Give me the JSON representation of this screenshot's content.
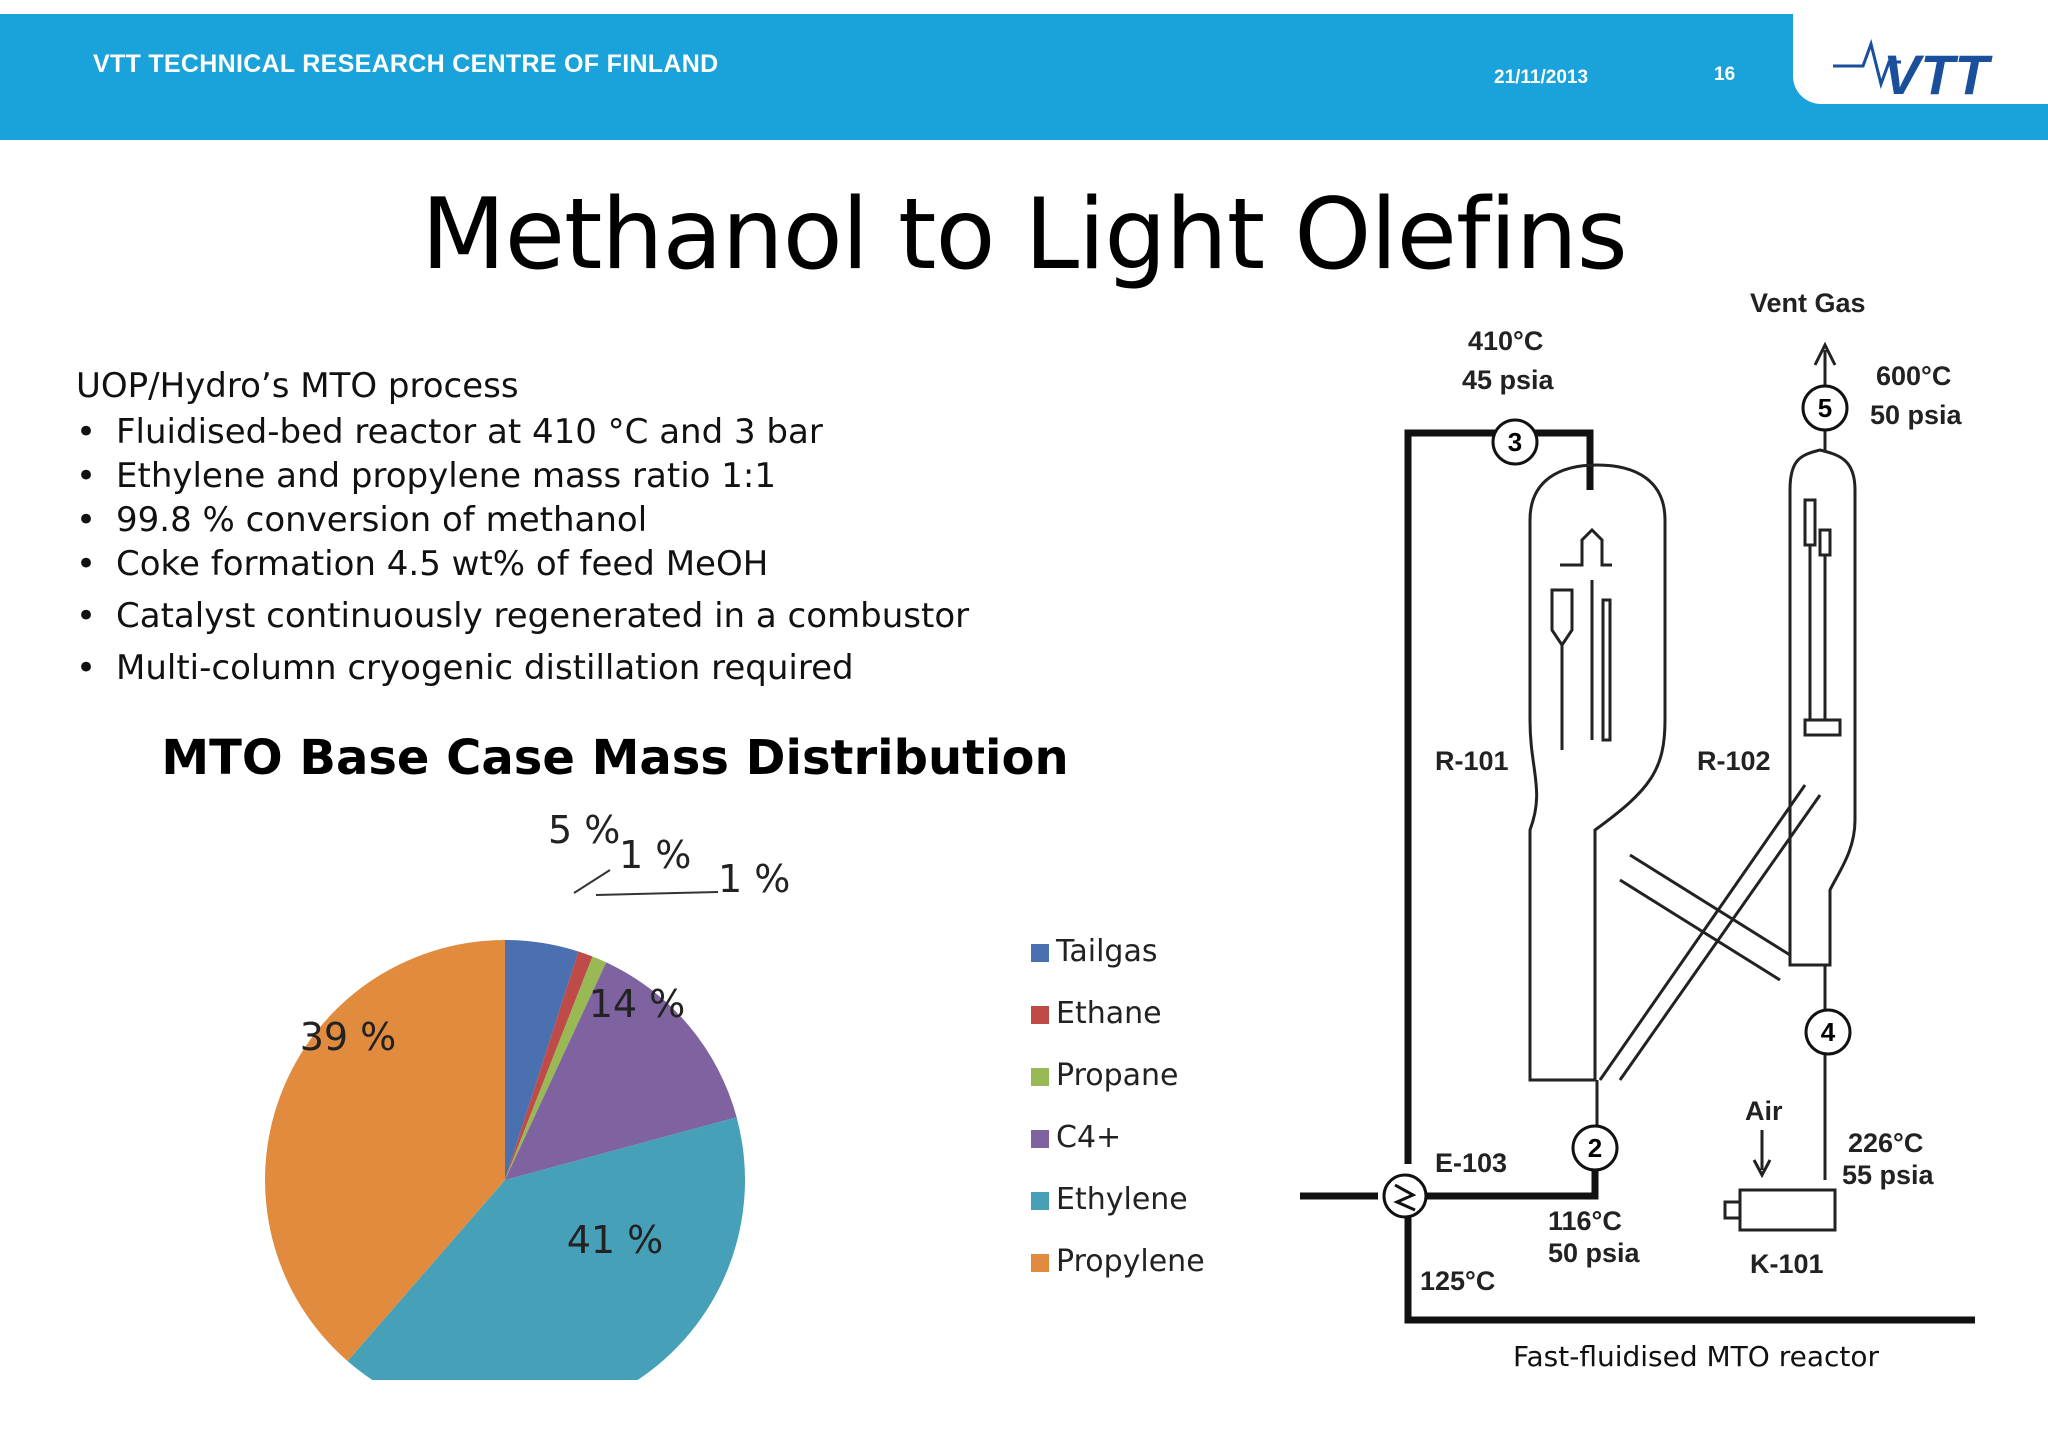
{
  "header": {
    "org_name": "VTT TECHNICAL RESEARCH CENTRE OF FINLAND",
    "date": "21/11/2013",
    "page_number": "16",
    "logo_text": "VTT",
    "colors": {
      "bar": "#1aa2da",
      "logo": "#1a4f9c"
    }
  },
  "slide": {
    "title": "Methanol to Light Olefins",
    "intro": "UOP/Hydro’s MTO process",
    "bullets": [
      "Fluidised-bed reactor at 410 °C and 3 bar",
      "Ethylene and propylene mass ratio 1:1",
      "99.8 % conversion of methanol",
      "Coke formation 4.5 wt% of feed MeOH",
      "Catalyst continuously regenerated in a combustor",
      "Multi-column cryogenic distillation required"
    ]
  },
  "chart_data": {
    "type": "pie",
    "title": "MTO Base Case Mass Distribution",
    "categories": [
      "Tailgas",
      "Ethane",
      "Propane",
      "C4+",
      "Ethylene",
      "Propylene"
    ],
    "values": [
      5,
      1,
      1,
      14,
      41,
      39
    ],
    "data_labels": [
      "5 %",
      "1 %",
      "1 %",
      "14 %",
      "41 %",
      "39 %"
    ],
    "colors": [
      "#4a70b0",
      "#be4b48",
      "#98b954",
      "#7e63a0",
      "#46a0b8",
      "#e08b3e"
    ],
    "legend_placement": "right"
  },
  "diagram": {
    "caption": "Fast-fluidised MTO reactor",
    "vent_label": "Vent Gas",
    "nodes": [
      {
        "id": "R-101",
        "label": "R-101"
      },
      {
        "id": "R-102",
        "label": "R-102"
      },
      {
        "id": "E-103",
        "label": "E-103"
      },
      {
        "id": "K-101",
        "label": "K-101"
      }
    ],
    "streams": [
      {
        "number": "2",
        "temperature": "116°C",
        "pressure": "50 psia"
      },
      {
        "number": "3",
        "temperature": "410°C",
        "pressure": "45 psia"
      },
      {
        "number": "4",
        "temperature": "226°C",
        "pressure": "55 psia"
      },
      {
        "number": "5",
        "temperature": "600°C",
        "pressure": "50 psia"
      }
    ],
    "feed_temperature": "125°C",
    "air_label": "Air"
  }
}
